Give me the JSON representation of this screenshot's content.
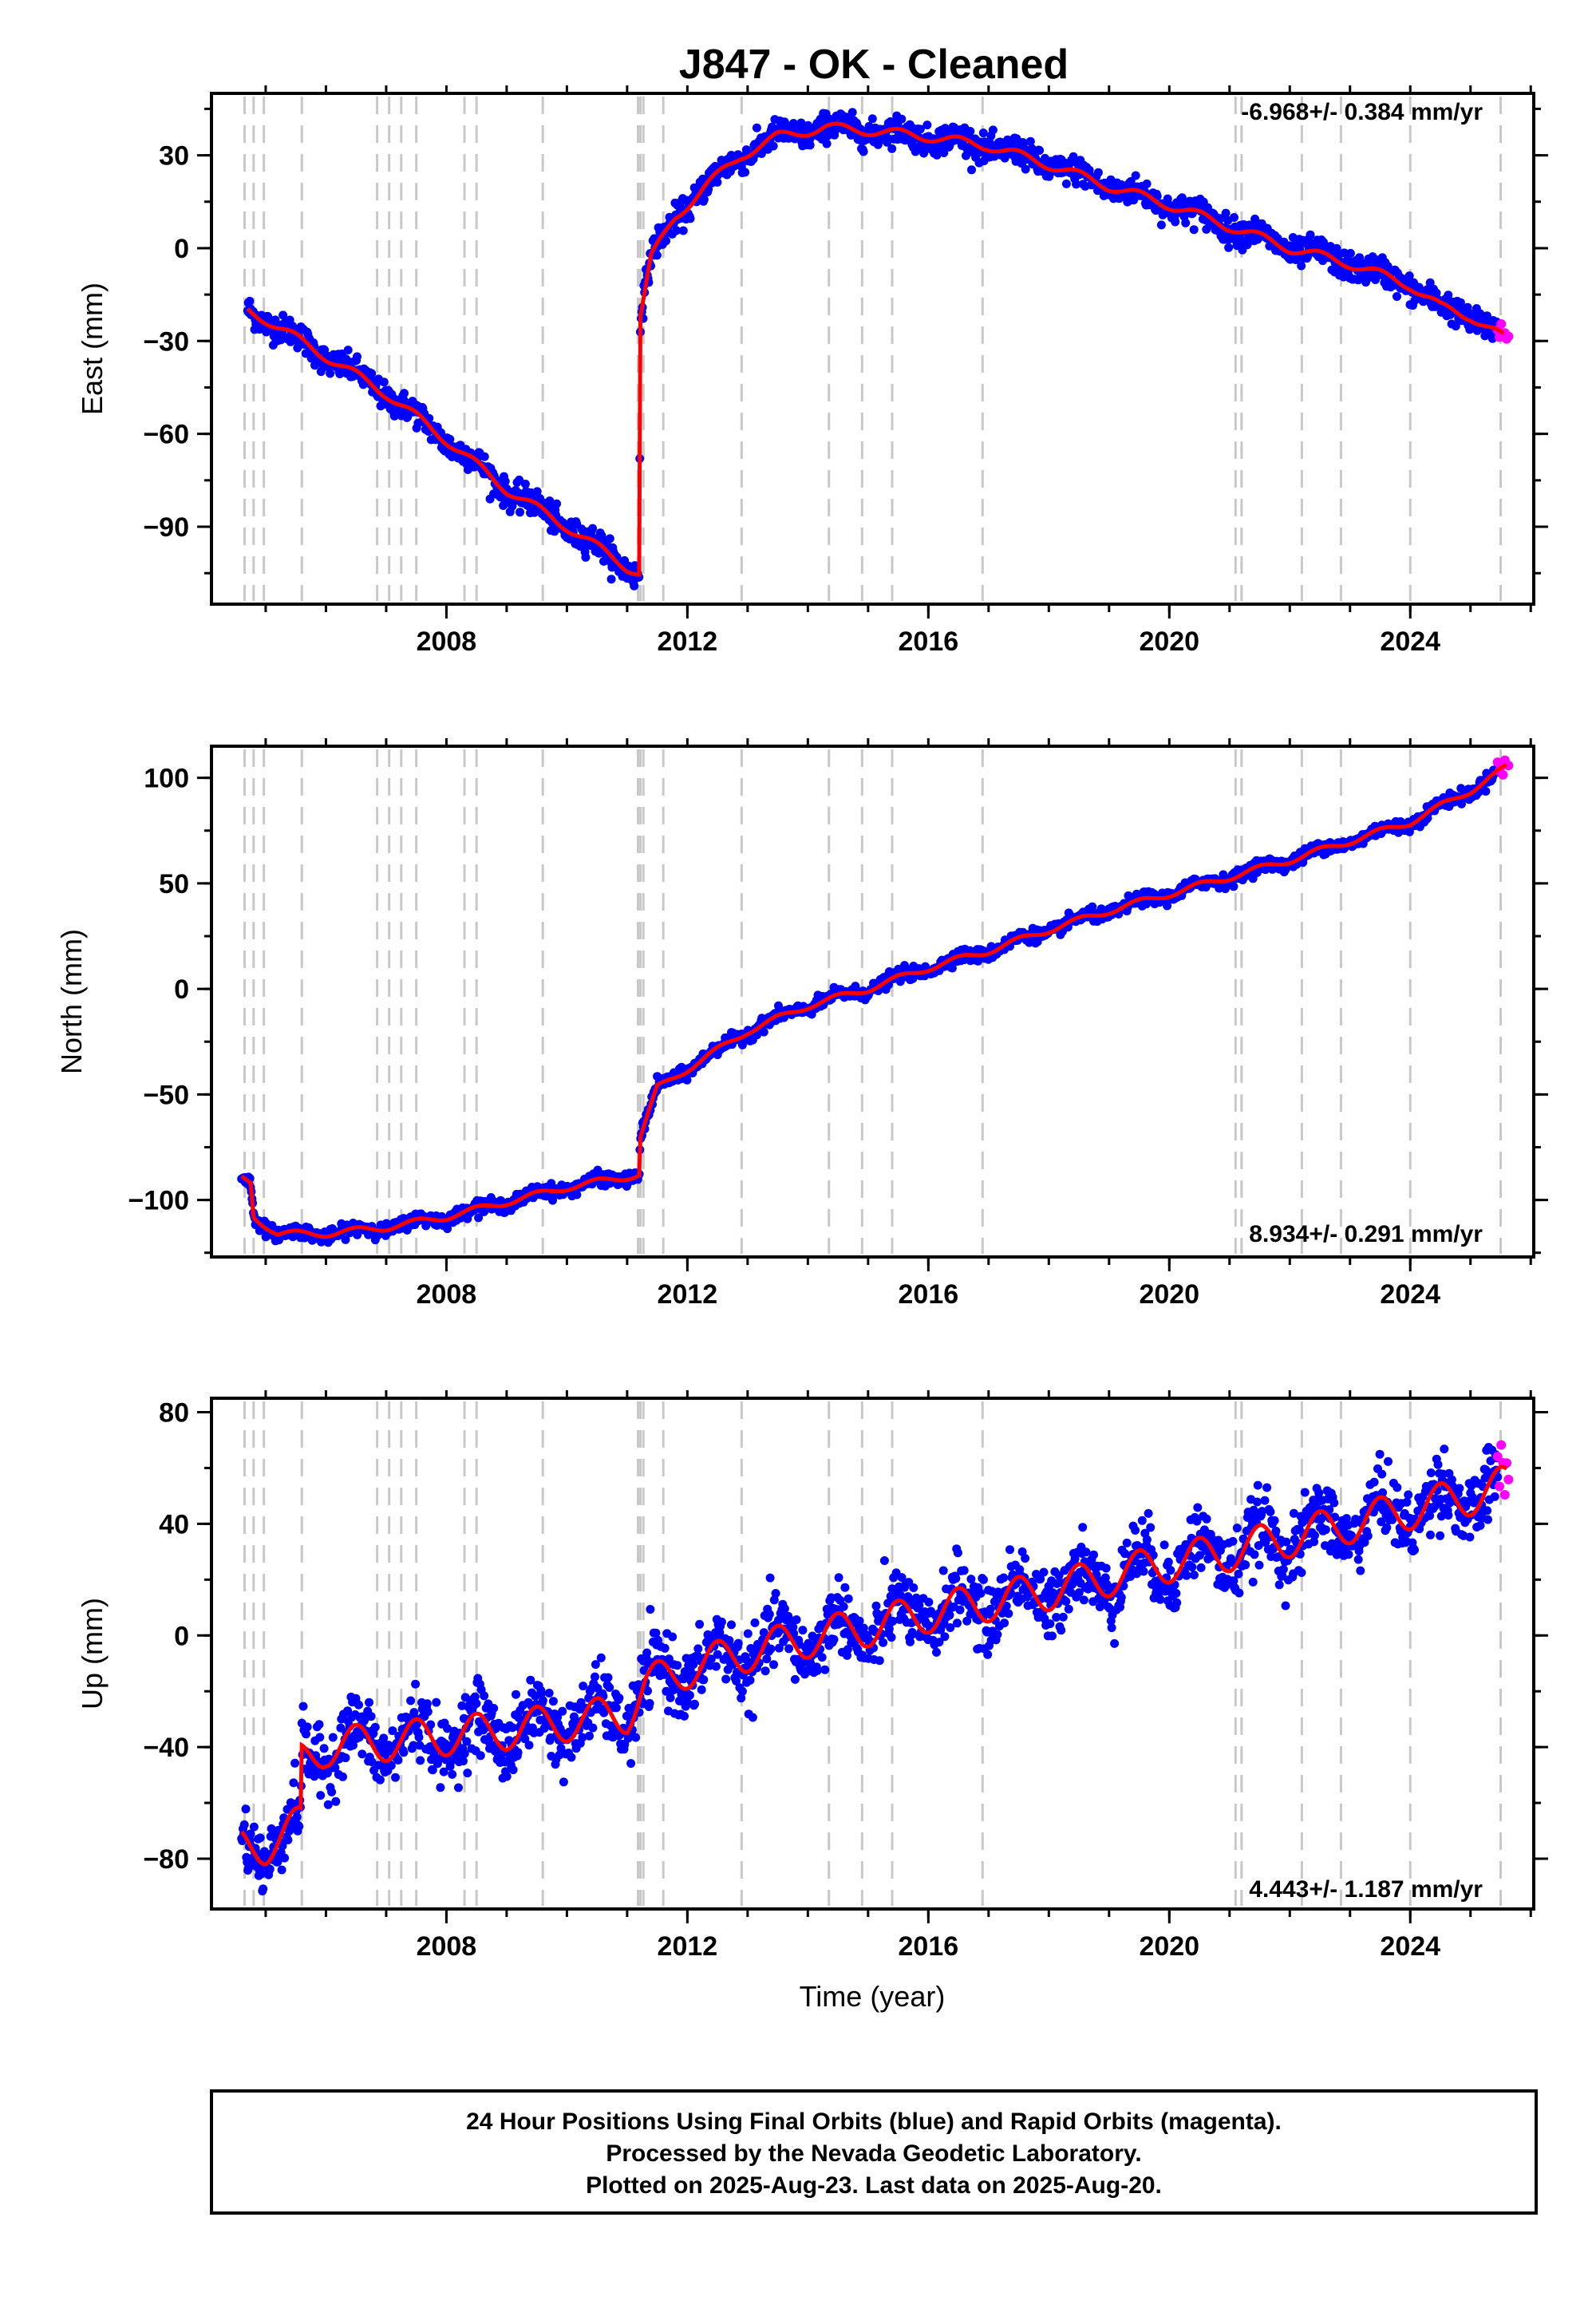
{
  "title": "J847  - OK - Cleaned",
  "xlabel": "Time (year)",
  "footer": {
    "line1": "24 Hour Positions Using Final Orbits (blue) and Rapid Orbits (magenta).",
    "line2": "Processed by the Nevada Geodetic Laboratory.",
    "line3": "Plotted on 2025-Aug-23. Last data on 2025-Aug-20."
  },
  "colors": {
    "final_orbits": "#0000ff",
    "rapid_orbits": "#ff00ff",
    "model_fit": "#ff0000",
    "event_lines": "#c8c8c8"
  },
  "chart_data": [
    {
      "type": "scatter",
      "component": "east",
      "ylabel": "East (mm)",
      "rate_label": "-6.968+/- 0.384 mm/yr",
      "xlim": [
        2004.1,
        2026.05
      ],
      "ylim": [
        -115,
        50
      ],
      "xticks": [
        2008,
        2012,
        2016,
        2020,
        2024
      ],
      "yticks": [
        -90,
        -60,
        -30,
        0,
        30
      ],
      "grid": false,
      "trend_knots": [
        [
          2004.7,
          -20
        ],
        [
          2005.0,
          -23
        ],
        [
          2006.0,
          -35
        ],
        [
          2007.0,
          -47
        ],
        [
          2008.0,
          -62
        ],
        [
          2009.0,
          -78
        ],
        [
          2010.0,
          -90
        ],
        [
          2011.0,
          -103
        ],
        [
          2011.2,
          -105
        ],
        [
          2011.22,
          -22
        ],
        [
          2011.4,
          -3
        ],
        [
          2011.8,
          10
        ],
        [
          2012.3,
          20
        ],
        [
          2012.9,
          30
        ],
        [
          2013.5,
          36
        ],
        [
          2014.3,
          39
        ],
        [
          2015.0,
          38
        ],
        [
          2016.0,
          36
        ],
        [
          2017.0,
          33
        ],
        [
          2018.0,
          27
        ],
        [
          2019.0,
          20
        ],
        [
          2020.0,
          14
        ],
        [
          2021.0,
          7
        ],
        [
          2022.0,
          0
        ],
        [
          2023.0,
          -5
        ],
        [
          2024.0,
          -12
        ],
        [
          2024.5,
          -19
        ],
        [
          2025.0,
          -22
        ],
        [
          2025.55,
          -29
        ]
      ],
      "seasonal_amp": 1.5,
      "scatter_sd": 2.2,
      "rapid_range": [
        2025.45,
        2025.63
      ],
      "events": [
        2004.65,
        2004.8,
        2004.97,
        2005.6,
        2006.85,
        2007.05,
        2007.25,
        2007.5,
        2008.3,
        2008.5,
        2009.6,
        2011.18,
        2011.22,
        2011.27,
        2011.6,
        2012.9,
        2014.35,
        2014.9,
        2015.4,
        2016.9,
        2021.1,
        2021.2,
        2022.2,
        2022.85,
        2024.0,
        2025.5
      ]
    },
    {
      "type": "scatter",
      "component": "north",
      "ylabel": "North (mm)",
      "rate_label": "8.934+/- 0.291 mm/yr",
      "xlim": [
        2004.1,
        2026.05
      ],
      "ylim": [
        -127,
        115
      ],
      "xticks": [
        2008,
        2012,
        2016,
        2020,
        2024
      ],
      "yticks": [
        -100,
        -50,
        0,
        50,
        100
      ],
      "grid": false,
      "trend_knots": [
        [
          2004.6,
          -90
        ],
        [
          2004.75,
          -92
        ],
        [
          2004.8,
          -108
        ],
        [
          2005.2,
          -116
        ],
        [
          2006.0,
          -116
        ],
        [
          2007.0,
          -113
        ],
        [
          2008.0,
          -108
        ],
        [
          2009.0,
          -101
        ],
        [
          2010.0,
          -94
        ],
        [
          2011.0,
          -89
        ],
        [
          2011.2,
          -88
        ],
        [
          2011.22,
          -70
        ],
        [
          2011.5,
          -47
        ],
        [
          2012.0,
          -38
        ],
        [
          2013.0,
          -20
        ],
        [
          2014.0,
          -8
        ],
        [
          2015.0,
          0
        ],
        [
          2016.0,
          10
        ],
        [
          2017.0,
          18
        ],
        [
          2018.0,
          28
        ],
        [
          2019.0,
          37
        ],
        [
          2020.0,
          45
        ],
        [
          2021.0,
          53
        ],
        [
          2022.0,
          61
        ],
        [
          2023.0,
          70
        ],
        [
          2024.0,
          79
        ],
        [
          2025.0,
          94
        ],
        [
          2025.6,
          105
        ]
      ],
      "seasonal_amp": 1.5,
      "scatter_sd": 1.5,
      "rapid_range": [
        2025.45,
        2025.63
      ],
      "events": [
        2004.65,
        2004.8,
        2004.97,
        2005.6,
        2006.85,
        2007.05,
        2007.25,
        2007.5,
        2008.3,
        2008.5,
        2009.6,
        2011.18,
        2011.22,
        2011.27,
        2011.6,
        2012.9,
        2014.35,
        2014.9,
        2015.4,
        2016.9,
        2021.1,
        2021.2,
        2022.2,
        2022.85,
        2024.0,
        2025.5
      ]
    },
    {
      "type": "scatter",
      "component": "up",
      "ylabel": "Up (mm)",
      "rate_label": "4.443+/- 1.187 mm/yr",
      "xlim": [
        2004.1,
        2026.05
      ],
      "ylim": [
        -98,
        85
      ],
      "xticks": [
        2008,
        2012,
        2016,
        2020,
        2024
      ],
      "yticks": [
        -80,
        -40,
        0,
        40,
        80
      ],
      "grid": false,
      "trend_knots": [
        [
          2004.6,
          -76
        ],
        [
          2005.0,
          -75
        ],
        [
          2005.58,
          -68
        ],
        [
          2005.6,
          -45
        ],
        [
          2006.0,
          -40
        ],
        [
          2007.0,
          -38
        ],
        [
          2008.0,
          -36
        ],
        [
          2009.0,
          -34
        ],
        [
          2010.0,
          -31
        ],
        [
          2011.0,
          -28
        ],
        [
          2011.3,
          -18
        ],
        [
          2012.0,
          -12
        ],
        [
          2013.0,
          -6
        ],
        [
          2014.0,
          -1
        ],
        [
          2015.0,
          3
        ],
        [
          2016.0,
          8
        ],
        [
          2017.0,
          12
        ],
        [
          2018.0,
          16
        ],
        [
          2019.0,
          21
        ],
        [
          2020.0,
          26
        ],
        [
          2021.0,
          30
        ],
        [
          2022.0,
          35
        ],
        [
          2023.0,
          40
        ],
        [
          2024.0,
          45
        ],
        [
          2025.0,
          50
        ],
        [
          2025.6,
          54
        ]
      ],
      "seasonal_amp": 7,
      "scatter_sd": 6,
      "rapid_range": [
        2025.45,
        2025.63
      ],
      "events": [
        2004.65,
        2004.8,
        2004.97,
        2005.6,
        2006.85,
        2007.05,
        2007.25,
        2007.5,
        2008.3,
        2008.5,
        2009.6,
        2011.18,
        2011.22,
        2011.27,
        2011.6,
        2012.9,
        2014.35,
        2014.9,
        2015.4,
        2016.9,
        2021.1,
        2021.2,
        2022.2,
        2022.85,
        2024.0,
        2025.5
      ]
    }
  ]
}
